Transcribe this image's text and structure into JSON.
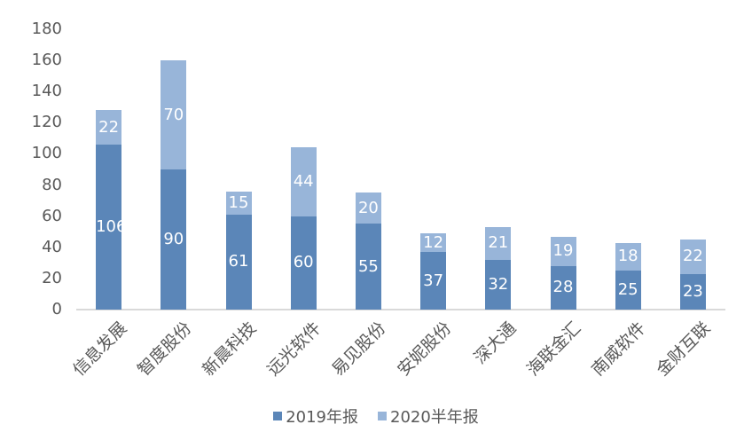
{
  "chart_data": {
    "type": "bar",
    "stacked": true,
    "title": "",
    "xlabel": "",
    "ylabel": "",
    "ylim": [
      0,
      180
    ],
    "yticks": [
      0,
      20,
      40,
      60,
      80,
      100,
      120,
      140,
      160,
      180
    ],
    "grid": false,
    "legend_position": "bottom",
    "categories": [
      "信息发展",
      "智度股份",
      "新晨科技",
      "远光软件",
      "易见股份",
      "安妮股份",
      "深大通",
      "海联金汇",
      "南威软件",
      "金财互联"
    ],
    "series": [
      {
        "name": "2019年报",
        "color": "#5b86b8",
        "values": [
          106,
          90,
          61,
          60,
          55,
          37,
          32,
          28,
          25,
          23
        ]
      },
      {
        "name": "2020半年报",
        "color": "#98b5d9",
        "values": [
          22,
          70,
          15,
          44,
          20,
          12,
          21,
          19,
          18,
          22
        ]
      }
    ]
  },
  "legend": {
    "items": [
      {
        "label": "2019年报",
        "color": "#5b86b8"
      },
      {
        "label": "2020半年报",
        "color": "#98b5d9"
      }
    ]
  }
}
